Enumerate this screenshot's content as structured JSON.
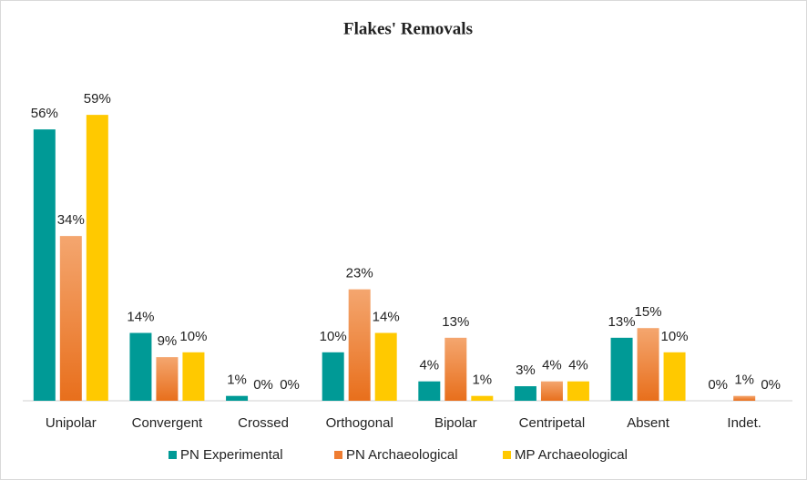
{
  "chart_data": {
    "type": "bar",
    "title": "Flakes' Removals",
    "categories": [
      "Unipolar",
      "Convergent",
      "Crossed",
      "Orthogonal",
      "Bipolar",
      "Centripetal",
      "Absent",
      "Indet."
    ],
    "series": [
      {
        "name": "PN Experimental",
        "color": "#009a96",
        "values": [
          56,
          14,
          1,
          10,
          4,
          3,
          13,
          0
        ],
        "value_labels": [
          "56%",
          "14%",
          "1%",
          "10%",
          "4%",
          "3%",
          "13%",
          "0%"
        ]
      },
      {
        "name": "PN Archaeological",
        "color": "#ef7d32",
        "values": [
          34,
          9,
          0,
          23,
          13,
          4,
          15,
          1
        ],
        "value_labels": [
          "34%",
          "9%",
          "0%",
          "23%",
          "13%",
          "4%",
          "15%",
          "1%"
        ]
      },
      {
        "name": "MP Archaeological",
        "color": "#ffc900",
        "values": [
          59,
          10,
          0,
          14,
          1,
          4,
          10,
          0
        ],
        "value_labels": [
          "59%",
          "10%",
          "0%",
          "14%",
          "1%",
          "4%",
          "10%",
          "0%"
        ]
      }
    ],
    "legend": "bottom"
  }
}
